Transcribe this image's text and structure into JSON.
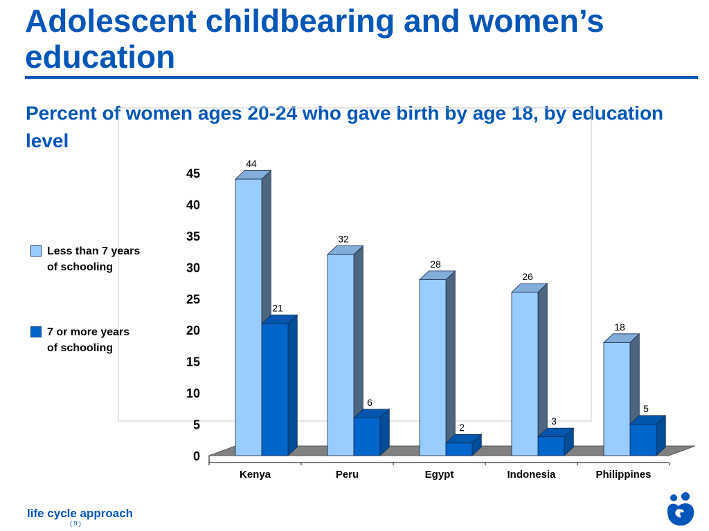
{
  "slide": {
    "title": "Adolescent childbearing and women’s education",
    "subtitle": "Percent of women ages 20-24 who gave birth by age 18, by education level",
    "footer": "life cycle approach",
    "page_number": "( 9 )"
  },
  "colors": {
    "title_blue": "#0055b8",
    "series_light": "#99ccff",
    "series_dark": "#0066cc",
    "floor": "#808080"
  },
  "icons": {
    "logo": "unfpa-logo-icon"
  },
  "chart_data": {
    "type": "bar",
    "title": "Percent of women ages 20-24 who gave birth by age 18, by education level",
    "categories": [
      "Kenya",
      "Peru",
      "Egypt",
      "Indonesia",
      "Philippines"
    ],
    "series": [
      {
        "name": "Less than 7 years\nof schooling",
        "values": [
          44,
          32,
          28,
          26,
          18
        ],
        "color": "#99ccff"
      },
      {
        "name": "7 or more years\nof schooling",
        "values": [
          21,
          6,
          2,
          3,
          5
        ],
        "color": "#0066cc"
      }
    ],
    "ylim": [
      0,
      45
    ],
    "yticks": [
      0,
      5,
      10,
      15,
      20,
      25,
      30,
      35,
      40,
      45
    ],
    "xlabel": "",
    "ylabel": "",
    "legend": "left",
    "grid": false
  }
}
